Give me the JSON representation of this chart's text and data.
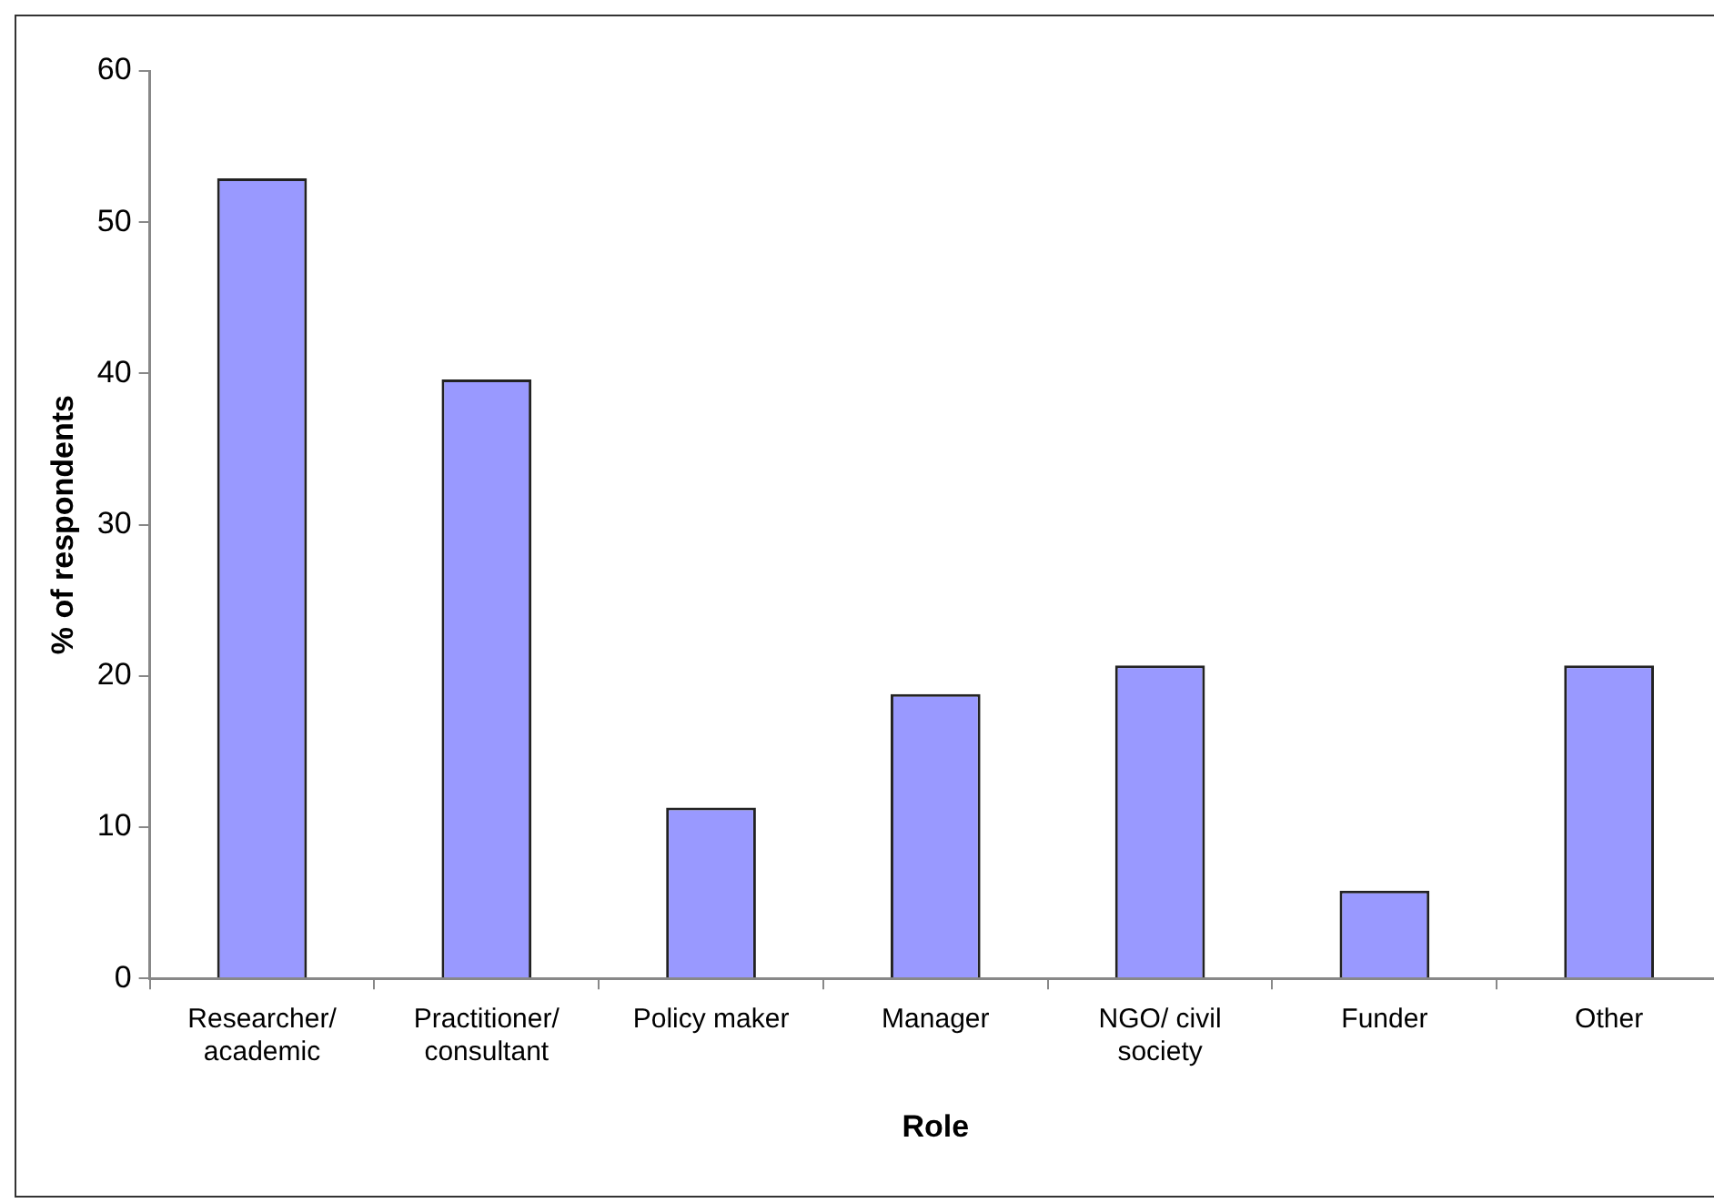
{
  "chart_data": {
    "type": "bar",
    "xlabel": "Role",
    "ylabel": "% of respondents",
    "categories": [
      "Researcher/ academic",
      "Practitioner/ consultant",
      "Policy maker",
      "Manager",
      "NGO/ civil society",
      "Funder",
      "Other"
    ],
    "values": [
      52.9,
      39.6,
      11.3,
      18.8,
      20.7,
      5.8,
      20.7
    ],
    "color": "#9999ff",
    "ylim": [
      0,
      60
    ],
    "yticks": [
      0,
      10,
      20,
      30,
      40,
      50,
      60
    ],
    "grid": false,
    "legend": false
  }
}
